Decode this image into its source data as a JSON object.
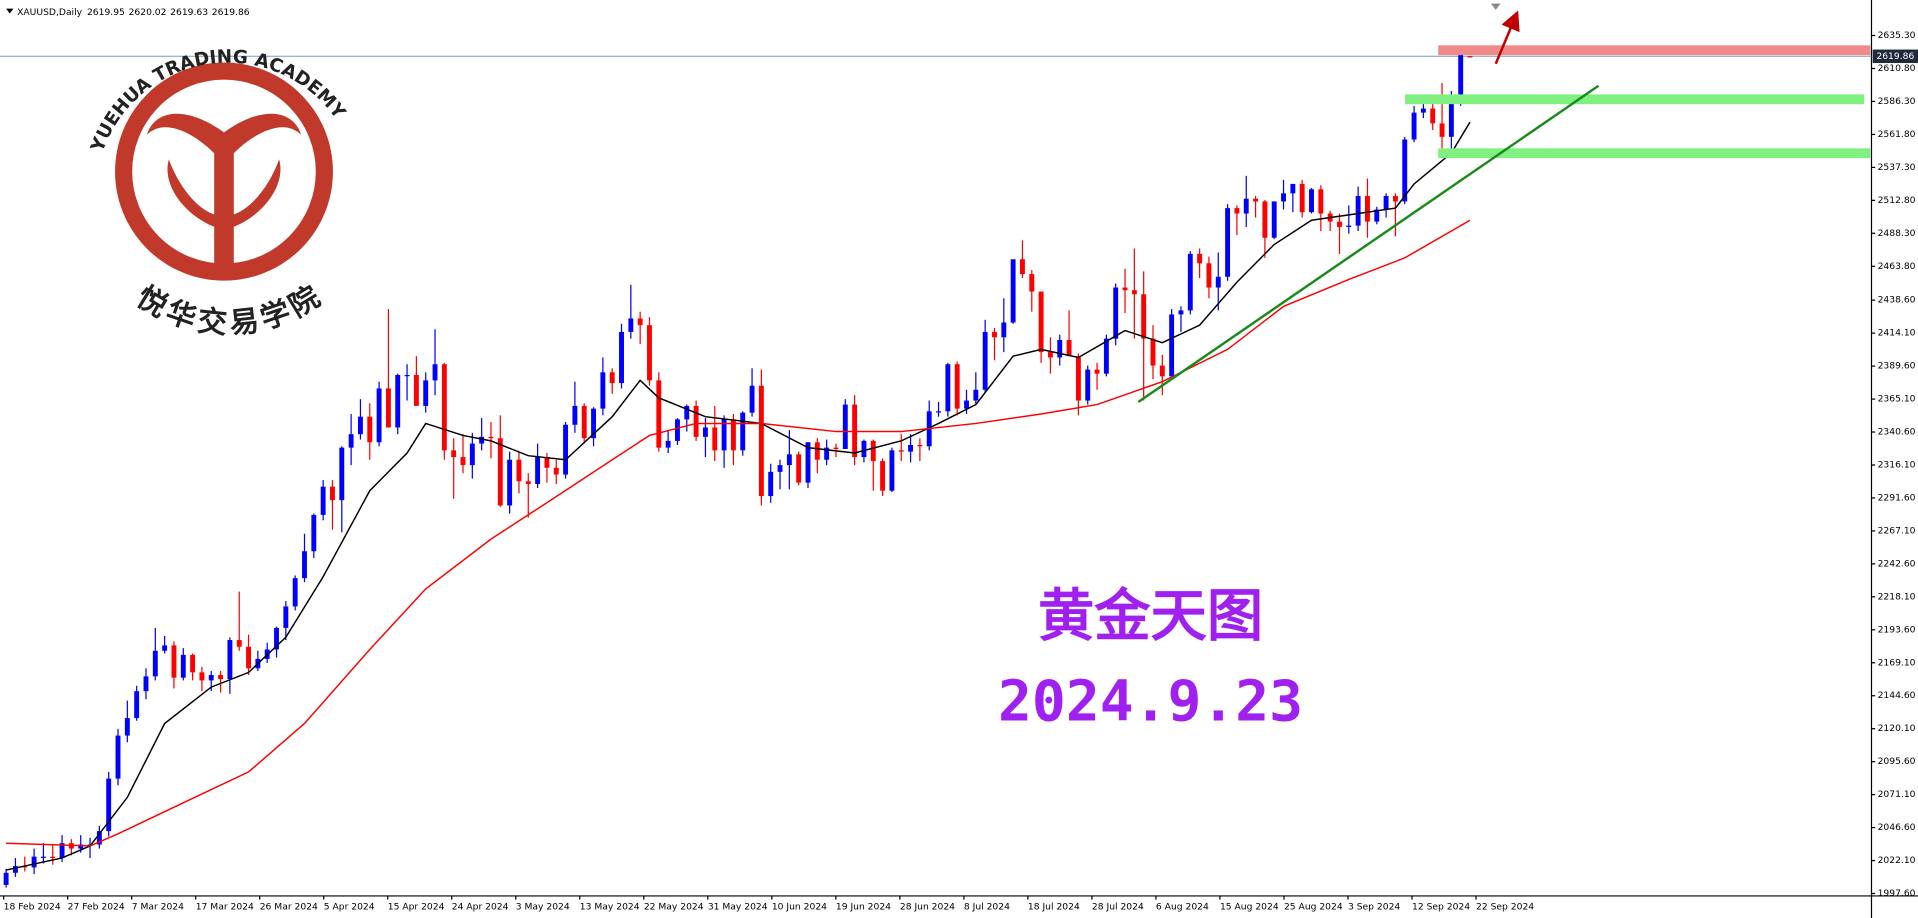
{
  "chart_data": {
    "type": "candlestick",
    "symbol": "XAUUSD,Daily",
    "headline": "黄金天图",
    "date_text": "2024.9.23",
    "logo_cn": "悦华交易学院",
    "logo_en": "YUEHUA TRADING ACADEMY",
    "up_color": "#0000ff",
    "down_color": "#ff0000",
    "ylim": [
      1995.8,
      2661.7
    ],
    "yticks": [
      {
        "value": 2635.3,
        "label": "2635.30"
      },
      {
        "value": 2610.8,
        "label": "2610.80"
      },
      {
        "value": 2586.3,
        "label": "2586.30"
      },
      {
        "value": 2561.8,
        "label": "2561.80"
      },
      {
        "value": 2537.3,
        "label": "2537.30"
      },
      {
        "value": 2512.8,
        "label": "2512.80"
      },
      {
        "value": 2488.3,
        "label": "2488.30"
      },
      {
        "value": 2463.8,
        "label": "2463.80"
      },
      {
        "value": 2438.6,
        "label": "2438.60"
      },
      {
        "value": 2414.1,
        "label": "2414.10"
      },
      {
        "value": 2389.6,
        "label": "2389.60"
      },
      {
        "value": 2365.1,
        "label": "2365.10"
      },
      {
        "value": 2340.6,
        "label": "2340.60"
      },
      {
        "value": 2316.1,
        "label": "2316.10"
      },
      {
        "value": 2291.6,
        "label": "2291.60"
      },
      {
        "value": 2267.1,
        "label": "2267.10"
      },
      {
        "value": 2242.6,
        "label": "2242.60"
      },
      {
        "value": 2218.1,
        "label": "2218.10"
      },
      {
        "value": 2193.6,
        "label": "2193.60"
      },
      {
        "value": 2169.1,
        "label": "2169.10"
      },
      {
        "value": 2144.6,
        "label": "2144.60"
      },
      {
        "value": 2120.1,
        "label": "2120.10"
      },
      {
        "value": 2095.6,
        "label": "2095.60"
      },
      {
        "value": 2071.1,
        "label": "2071.10"
      },
      {
        "value": 2046.6,
        "label": "2046.60"
      },
      {
        "value": 2022.1,
        "label": "2022.10"
      },
      {
        "value": 1997.6,
        "label": "1997.60"
      }
    ],
    "x_labels": [
      "18 Feb 2024",
      "27 Feb 2024",
      "7 Mar 2024",
      "17 Mar 2024",
      "26 Mar 2024",
      "5 Apr 2024",
      "15 Apr 2024",
      "24 Apr 2024",
      "3 May 2024",
      "13 May 2024",
      "22 May 2024",
      "31 May 2024",
      "10 Jun 2024",
      "19 Jun 2024",
      "28 Jun 2024",
      "8 Jul 2024",
      "18 Jul 2024",
      "28 Jul 2024",
      "6 Aug 2024",
      "15 Aug 2024",
      "25 Aug 2024",
      "3 Sep 2024",
      "12 Sep 2024",
      "22 Sep 2024"
    ],
    "candles": [
      [
        2004,
        2016,
        2002,
        2013
      ],
      [
        2013,
        2024,
        2010,
        2018
      ],
      [
        2018,
        2025,
        2014,
        2017
      ],
      [
        2017,
        2031,
        2012,
        2025
      ],
      [
        2025,
        2035,
        2020,
        2025
      ],
      [
        2025,
        2034,
        2019,
        2024
      ],
      [
        2024,
        2041,
        2021,
        2035
      ],
      [
        2035,
        2038,
        2026,
        2031
      ],
      [
        2031,
        2041,
        2028,
        2034
      ],
      [
        2034,
        2039,
        2024,
        2034
      ],
      [
        2034,
        2048,
        2031,
        2044
      ],
      [
        2044,
        2088,
        2040,
        2083
      ],
      [
        2083,
        2120,
        2078,
        2115
      ],
      [
        2115,
        2141,
        2110,
        2128
      ],
      [
        2128,
        2152,
        2126,
        2148
      ],
      [
        2148,
        2165,
        2142,
        2159
      ],
      [
        2159,
        2195,
        2156,
        2178
      ],
      [
        2178,
        2189,
        2176,
        2182
      ],
      [
        2182,
        2185,
        2150,
        2158
      ],
      [
        2158,
        2180,
        2156,
        2175
      ],
      [
        2175,
        2176,
        2156,
        2162
      ],
      [
        2162,
        2166,
        2148,
        2156
      ],
      [
        2156,
        2163,
        2148,
        2160
      ],
      [
        2160,
        2163,
        2147,
        2157
      ],
      [
        2157,
        2188,
        2146,
        2186
      ],
      [
        2186,
        2222,
        2178,
        2181
      ],
      [
        2181,
        2190,
        2160,
        2165
      ],
      [
        2165,
        2178,
        2163,
        2172
      ],
      [
        2172,
        2184,
        2169,
        2179
      ],
      [
        2179,
        2196,
        2173,
        2195
      ],
      [
        2195,
        2215,
        2186,
        2211
      ],
      [
        2211,
        2234,
        2208,
        2232
      ],
      [
        2232,
        2265,
        2229,
        2252
      ],
      [
        2252,
        2280,
        2247,
        2279
      ],
      [
        2279,
        2305,
        2275,
        2300
      ],
      [
        2300,
        2305,
        2268,
        2290
      ],
      [
        2290,
        2330,
        2266,
        2329
      ],
      [
        2329,
        2354,
        2316,
        2339
      ],
      [
        2339,
        2365,
        2335,
        2352
      ],
      [
        2352,
        2362,
        2320,
        2333
      ],
      [
        2333,
        2378,
        2330,
        2373
      ],
      [
        2373,
        2432,
        2344,
        2344
      ],
      [
        2344,
        2384,
        2339,
        2383
      ],
      [
        2383,
        2391,
        2364,
        2383
      ],
      [
        2383,
        2397,
        2366,
        2360
      ],
      [
        2360,
        2385,
        2355,
        2379
      ],
      [
        2379,
        2417,
        2368,
        2391
      ],
      [
        2391,
        2392,
        2320,
        2327
      ],
      [
        2327,
        2336,
        2291,
        2322
      ],
      [
        2322,
        2339,
        2310,
        2316
      ],
      [
        2316,
        2340,
        2306,
        2332
      ],
      [
        2332,
        2351,
        2327,
        2337
      ],
      [
        2337,
        2348,
        2321,
        2336
      ],
      [
        2336,
        2353,
        2285,
        2286
      ],
      [
        2286,
        2326,
        2280,
        2320
      ],
      [
        2320,
        2326,
        2295,
        2304
      ],
      [
        2304,
        2310,
        2277,
        2302
      ],
      [
        2302,
        2332,
        2299,
        2322
      ],
      [
        2322,
        2325,
        2303,
        2314
      ],
      [
        2314,
        2320,
        2302,
        2309
      ],
      [
        2309,
        2348,
        2306,
        2346
      ],
      [
        2346,
        2378,
        2340,
        2360
      ],
      [
        2360,
        2362,
        2332,
        2336
      ],
      [
        2336,
        2359,
        2330,
        2358
      ],
      [
        2358,
        2396,
        2353,
        2385
      ],
      [
        2385,
        2388,
        2369,
        2377
      ],
      [
        2377,
        2421,
        2373,
        2415
      ],
      [
        2415,
        2450,
        2410,
        2425
      ],
      [
        2425,
        2430,
        2406,
        2420
      ],
      [
        2420,
        2426,
        2375,
        2379
      ],
      [
        2379,
        2385,
        2326,
        2329
      ],
      [
        2329,
        2342,
        2325,
        2334
      ],
      [
        2334,
        2351,
        2331,
        2350
      ],
      [
        2350,
        2361,
        2341,
        2360
      ],
      [
        2360,
        2364,
        2334,
        2337
      ],
      [
        2337,
        2351,
        2322,
        2344
      ],
      [
        2344,
        2360,
        2319,
        2327
      ],
      [
        2327,
        2353,
        2314,
        2350
      ],
      [
        2350,
        2354,
        2316,
        2327
      ],
      [
        2327,
        2356,
        2323,
        2355
      ],
      [
        2355,
        2388,
        2352,
        2375
      ],
      [
        2375,
        2387,
        2286,
        2293
      ],
      [
        2293,
        2317,
        2288,
        2311
      ],
      [
        2311,
        2320,
        2298,
        2316
      ],
      [
        2316,
        2342,
        2298,
        2324
      ],
      [
        2324,
        2326,
        2301,
        2303
      ],
      [
        2303,
        2333,
        2299,
        2333
      ],
      [
        2333,
        2336,
        2310,
        2320
      ],
      [
        2320,
        2335,
        2316,
        2329
      ],
      [
        2329,
        2332,
        2322,
        2328
      ],
      [
        2328,
        2365,
        2328,
        2361
      ],
      [
        2361,
        2368,
        2316,
        2322
      ],
      [
        2322,
        2335,
        2318,
        2334
      ],
      [
        2334,
        2335,
        2297,
        2319
      ],
      [
        2319,
        2321,
        2293,
        2297
      ],
      [
        2297,
        2329,
        2296,
        2327
      ],
      [
        2327,
        2339,
        2319,
        2326
      ],
      [
        2326,
        2339,
        2318,
        2331
      ],
      [
        2331,
        2336,
        2319,
        2330
      ],
      [
        2330,
        2364,
        2327,
        2356
      ],
      [
        2356,
        2363,
        2352,
        2356
      ],
      [
        2356,
        2392,
        2352,
        2391
      ],
      [
        2391,
        2393,
        2353,
        2358
      ],
      [
        2358,
        2372,
        2354,
        2364
      ],
      [
        2364,
        2385,
        2361,
        2372
      ],
      [
        2372,
        2424,
        2370,
        2415
      ],
      [
        2415,
        2418,
        2394,
        2411
      ],
      [
        2411,
        2440,
        2400,
        2422
      ],
      [
        2422,
        2468,
        2421,
        2469
      ],
      [
        2469,
        2483,
        2455,
        2458
      ],
      [
        2458,
        2461,
        2430,
        2445
      ],
      [
        2445,
        2445,
        2392,
        2400
      ],
      [
        2400,
        2411,
        2384,
        2396
      ],
      [
        2396,
        2413,
        2390,
        2409
      ],
      [
        2409,
        2431,
        2397,
        2397
      ],
      [
        2397,
        2399,
        2353,
        2364
      ],
      [
        2364,
        2390,
        2361,
        2387
      ],
      [
        2387,
        2392,
        2372,
        2384
      ],
      [
        2384,
        2413,
        2382,
        2410
      ],
      [
        2410,
        2451,
        2405,
        2448
      ],
      [
        2448,
        2462,
        2429,
        2446
      ],
      [
        2446,
        2477,
        2410,
        2443
      ],
      [
        2443,
        2460,
        2364,
        2410
      ],
      [
        2410,
        2420,
        2380,
        2390
      ],
      [
        2390,
        2398,
        2368,
        2382
      ],
      [
        2382,
        2432,
        2380,
        2428
      ],
      [
        2428,
        2434,
        2415,
        2431
      ],
      [
        2431,
        2475,
        2428,
        2473
      ],
      [
        2473,
        2477,
        2455,
        2466
      ],
      [
        2466,
        2471,
        2440,
        2448
      ],
      [
        2448,
        2474,
        2431,
        2456
      ],
      [
        2456,
        2510,
        2453,
        2507
      ],
      [
        2507,
        2509,
        2487,
        2503
      ],
      [
        2503,
        2531,
        2493,
        2514
      ],
      [
        2514,
        2516,
        2500,
        2512
      ],
      [
        2512,
        2513,
        2470,
        2485
      ],
      [
        2485,
        2512,
        2484,
        2512
      ],
      [
        2512,
        2528,
        2506,
        2518
      ],
      [
        2518,
        2525,
        2504,
        2525
      ],
      [
        2525,
        2528,
        2500,
        2504
      ],
      [
        2504,
        2522,
        2503,
        2521
      ],
      [
        2521,
        2524,
        2490,
        2503
      ],
      [
        2503,
        2505,
        2490,
        2497
      ],
      [
        2497,
        2503,
        2473,
        2493
      ],
      [
        2493,
        2509,
        2488,
        2494
      ],
      [
        2494,
        2523,
        2490,
        2516
      ],
      [
        2516,
        2529,
        2485,
        2497
      ],
      [
        2497,
        2508,
        2495,
        2506
      ],
      [
        2506,
        2518,
        2500,
        2516
      ],
      [
        2516,
        2518,
        2486,
        2512
      ],
      [
        2512,
        2560,
        2510,
        2558
      ],
      [
        2558,
        2583,
        2556,
        2578
      ],
      [
        2578,
        2590,
        2574,
        2581
      ],
      [
        2581,
        2589,
        2565,
        2570
      ],
      [
        2570,
        2600,
        2546,
        2560
      ],
      [
        2560,
        2594,
        2550,
        2587
      ],
      [
        2587,
        2625,
        2583,
        2622
      ],
      [
        2619.95,
        2620.02,
        2619.63,
        2619.86
      ]
    ],
    "lines": [
      {
        "color": "#000000",
        "x": [
          0,
          6,
          9,
          13,
          17,
          22,
          26,
          30,
          34,
          39,
          43,
          45,
          49,
          52,
          56,
          60,
          65,
          68,
          70,
          75,
          81,
          86,
          91,
          96,
          100,
          104,
          108,
          111,
          115,
          120,
          124,
          128,
          132,
          136,
          140,
          144,
          149,
          151,
          155,
          157
        ],
        "values": [
          2015,
          2024,
          2033,
          2069,
          2124,
          2151,
          2162,
          2188,
          2233,
          2297,
          2325,
          2347,
          2338,
          2334,
          2323,
          2320,
          2352,
          2379,
          2366,
          2352,
          2347,
          2329,
          2325,
          2334,
          2347,
          2361,
          2397,
          2402,
          2396,
          2416,
          2407,
          2420,
          2452,
          2480,
          2498,
          2502,
          2507,
          2525,
          2548,
          2571
        ]
      },
      {
        "color": "#ff0000",
        "x": [
          0,
          9,
          12,
          19,
          26,
          32,
          39,
          45,
          52,
          58,
          65,
          69,
          74,
          81,
          89,
          96,
          104,
          111,
          117,
          124,
          131,
          137,
          144,
          150,
          157
        ],
        "values": [
          2035,
          2033,
          2042,
          2065,
          2088,
          2124,
          2179,
          2224,
          2261,
          2288,
          2320,
          2338,
          2347,
          2347,
          2341,
          2341,
          2347,
          2354,
          2361,
          2378,
          2402,
          2434,
          2454,
          2470,
          2498
        ]
      }
    ]
  }
}
